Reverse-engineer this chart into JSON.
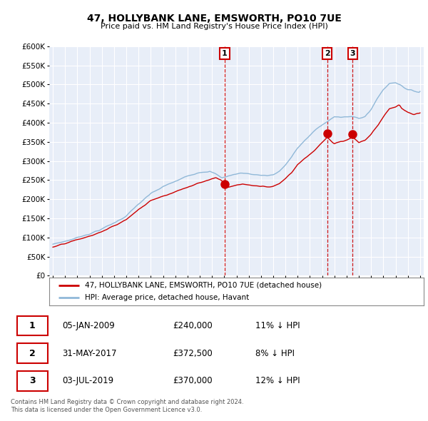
{
  "title": "47, HOLLYBANK LANE, EMSWORTH, PO10 7UE",
  "subtitle": "Price paid vs. HM Land Registry's House Price Index (HPI)",
  "legend_house": "47, HOLLYBANK LANE, EMSWORTH, PO10 7UE (detached house)",
  "legend_hpi": "HPI: Average price, detached house, Havant",
  "footnote": "Contains HM Land Registry data © Crown copyright and database right 2024.\nThis data is licensed under the Open Government Licence v3.0.",
  "transactions": [
    {
      "num": 1,
      "date": "05-JAN-2009",
      "price": "£240,000",
      "hpi_diff": "11% ↓ HPI",
      "x": 2009.04
    },
    {
      "num": 2,
      "date": "31-MAY-2017",
      "price": "£372,500",
      "hpi_diff": "8% ↓ HPI",
      "x": 2017.42
    },
    {
      "num": 3,
      "date": "03-JUL-2019",
      "price": "£370,000",
      "hpi_diff": "12% ↓ HPI",
      "x": 2019.5
    }
  ],
  "hpi_color": "#90b8d8",
  "house_color": "#cc0000",
  "marker_color": "#cc0000",
  "background_color": "#e8eef8",
  "ylim": [
    0,
    600000
  ],
  "xlim": [
    1994.7,
    2025.3
  ]
}
